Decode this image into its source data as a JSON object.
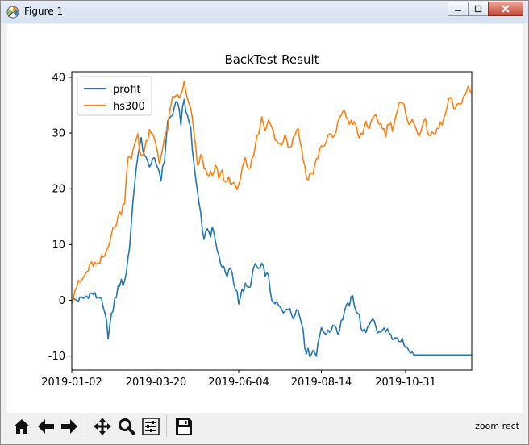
{
  "window": {
    "title": "Figure 1"
  },
  "status": {
    "text": "zoom rect"
  },
  "toolbar": {
    "buttons": [
      "home-icon",
      "back-icon",
      "forward-icon",
      "pan-icon",
      "zoom-icon",
      "subplots-icon",
      "save-icon"
    ]
  },
  "chart_data": {
    "type": "line",
    "title": "BackTest Result",
    "xlabel": "",
    "ylabel": "",
    "x_ticks": [
      "2019-01-02",
      "2019-03-20",
      "2019-06-04",
      "2019-08-14",
      "2019-10-31"
    ],
    "x_tick_index": [
      0,
      51,
      101,
      151,
      202
    ],
    "n_points": 243,
    "ylim": [
      -12.5,
      41
    ],
    "y_ticks": [
      -10,
      0,
      10,
      20,
      30,
      40
    ],
    "legend": {
      "position": "upper-left",
      "entries": [
        "profit",
        "hs300"
      ]
    },
    "grid": false,
    "series": [
      {
        "name": "profit",
        "color": "#1f77b4",
        "keypoints": [
          [
            0,
            0
          ],
          [
            6,
            0.2
          ],
          [
            8,
            0.5
          ],
          [
            10,
            1
          ],
          [
            13,
            1.2
          ],
          [
            15,
            0.6
          ],
          [
            17,
            0.8
          ],
          [
            19,
            -1.5
          ],
          [
            21,
            -4
          ],
          [
            22,
            -6.3
          ],
          [
            24,
            -3
          ],
          [
            26,
            0
          ],
          [
            28,
            2
          ],
          [
            30,
            4
          ],
          [
            31,
            2.5
          ],
          [
            33,
            5
          ],
          [
            35,
            10
          ],
          [
            37,
            17
          ],
          [
            38,
            21
          ],
          [
            39,
            24
          ],
          [
            41,
            27
          ],
          [
            42,
            29
          ],
          [
            44,
            26
          ],
          [
            46,
            24.5
          ],
          [
            48,
            24.5
          ],
          [
            50,
            25
          ],
          [
            52,
            24
          ],
          [
            54,
            22
          ],
          [
            56,
            25
          ],
          [
            58,
            32
          ],
          [
            60,
            33
          ],
          [
            62,
            34
          ],
          [
            64,
            36
          ],
          [
            66,
            32
          ],
          [
            68,
            36
          ],
          [
            69,
            34
          ],
          [
            72,
            31
          ],
          [
            74,
            24
          ],
          [
            76,
            20
          ],
          [
            77,
            17
          ],
          [
            79,
            13
          ],
          [
            80,
            11.5
          ],
          [
            82,
            13
          ],
          [
            84,
            11
          ],
          [
            85,
            13
          ],
          [
            87,
            11
          ],
          [
            88,
            9
          ],
          [
            90,
            7
          ],
          [
            92,
            5.5
          ],
          [
            94,
            4
          ],
          [
            96,
            6
          ],
          [
            98,
            3
          ],
          [
            100,
            1.5
          ],
          [
            101,
            0
          ],
          [
            103,
            1.5
          ],
          [
            105,
            2.5
          ],
          [
            107,
            2
          ],
          [
            109,
            4
          ],
          [
            111,
            6.5
          ],
          [
            113,
            5.5
          ],
          [
            115,
            6
          ],
          [
            117,
            5
          ],
          [
            119,
            4
          ],
          [
            120,
            2
          ],
          [
            122,
            -1
          ],
          [
            124,
            -0.5
          ],
          [
            126,
            -1.5
          ],
          [
            128,
            -2
          ],
          [
            130,
            -1
          ],
          [
            132,
            -2
          ],
          [
            134,
            -3
          ],
          [
            136,
            -1
          ],
          [
            138,
            -3
          ],
          [
            140,
            -5
          ],
          [
            141,
            -8
          ],
          [
            142,
            -9
          ],
          [
            144,
            -9.5
          ],
          [
            146,
            -9
          ],
          [
            148,
            -9.8
          ],
          [
            149,
            -7
          ],
          [
            151,
            -5.5
          ],
          [
            153,
            -5.5
          ],
          [
            155,
            -6
          ],
          [
            157,
            -5
          ],
          [
            159,
            -4
          ],
          [
            161,
            -6
          ],
          [
            163,
            -4
          ],
          [
            165,
            -2
          ],
          [
            166,
            -1.5
          ],
          [
            168,
            -0.5
          ],
          [
            170,
            0.5
          ],
          [
            172,
            -1.5
          ],
          [
            174,
            -3
          ],
          [
            176,
            -6
          ],
          [
            178,
            -5.5
          ],
          [
            180,
            -4
          ],
          [
            182,
            -3
          ],
          [
            184,
            -5
          ],
          [
            186,
            -6
          ],
          [
            188,
            -5.5
          ],
          [
            190,
            -5
          ],
          [
            192,
            -6
          ],
          [
            194,
            -7.5
          ],
          [
            196,
            -7
          ],
          [
            198,
            -7.5
          ],
          [
            200,
            -7
          ],
          [
            202,
            -9
          ],
          [
            204,
            -8.5
          ],
          [
            206,
            -9.8
          ],
          [
            243,
            -9.8
          ]
        ]
      },
      {
        "name": "hs300",
        "color": "#ff7f0e",
        "keypoints": [
          [
            0,
            0
          ],
          [
            2,
            2
          ],
          [
            4,
            3
          ],
          [
            6,
            3.5
          ],
          [
            8,
            4.5
          ],
          [
            10,
            5.5
          ],
          [
            12,
            6.5
          ],
          [
            14,
            6.5
          ],
          [
            16,
            6
          ],
          [
            18,
            7.5
          ],
          [
            20,
            8
          ],
          [
            22,
            10
          ],
          [
            24,
            12
          ],
          [
            26,
            13
          ],
          [
            28,
            15
          ],
          [
            30,
            16
          ],
          [
            32,
            18
          ],
          [
            33,
            22
          ],
          [
            34,
            26
          ],
          [
            36,
            25
          ],
          [
            38,
            28
          ],
          [
            40,
            30
          ],
          [
            41,
            27
          ],
          [
            43,
            26
          ],
          [
            45,
            28
          ],
          [
            47,
            30
          ],
          [
            49,
            29.5
          ],
          [
            51,
            28
          ],
          [
            53,
            25
          ],
          [
            55,
            27
          ],
          [
            57,
            30
          ],
          [
            58,
            31
          ],
          [
            59,
            33
          ],
          [
            61,
            36
          ],
          [
            63,
            37
          ],
          [
            65,
            36
          ],
          [
            67,
            38
          ],
          [
            68,
            39
          ],
          [
            69,
            37
          ],
          [
            71,
            35
          ],
          [
            72,
            34
          ],
          [
            74,
            30
          ],
          [
            76,
            24
          ],
          [
            77,
            25
          ],
          [
            78,
            26
          ],
          [
            80,
            24
          ],
          [
            81,
            23
          ],
          [
            83,
            23
          ],
          [
            85,
            22
          ],
          [
            87,
            24
          ],
          [
            89,
            22
          ],
          [
            91,
            23
          ],
          [
            93,
            21
          ],
          [
            95,
            22
          ],
          [
            97,
            21
          ],
          [
            99,
            20
          ],
          [
            101,
            21
          ],
          [
            103,
            23
          ],
          [
            105,
            25
          ],
          [
            107,
            23
          ],
          [
            109,
            25
          ],
          [
            111,
            28
          ],
          [
            113,
            30
          ],
          [
            115,
            33
          ],
          [
            117,
            31
          ],
          [
            119,
            32
          ],
          [
            121,
            31
          ],
          [
            123,
            29
          ],
          [
            125,
            28
          ],
          [
            127,
            28
          ],
          [
            129,
            30
          ],
          [
            131,
            28
          ],
          [
            133,
            28
          ],
          [
            135,
            30
          ],
          [
            137,
            31
          ],
          [
            139,
            27
          ],
          [
            141,
            24
          ],
          [
            142,
            22
          ],
          [
            144,
            22.5
          ],
          [
            146,
            23
          ],
          [
            148,
            25
          ],
          [
            150,
            27
          ],
          [
            152,
            28
          ],
          [
            154,
            28
          ],
          [
            156,
            30
          ],
          [
            158,
            29
          ],
          [
            160,
            30
          ],
          [
            162,
            33
          ],
          [
            164,
            34
          ],
          [
            166,
            33
          ],
          [
            168,
            32
          ],
          [
            170,
            32
          ],
          [
            172,
            31
          ],
          [
            174,
            29
          ],
          [
            176,
            30
          ],
          [
            178,
            32
          ],
          [
            180,
            31
          ],
          [
            182,
            32
          ],
          [
            184,
            33
          ],
          [
            186,
            32
          ],
          [
            188,
            31
          ],
          [
            190,
            30
          ],
          [
            192,
            32
          ],
          [
            194,
            31
          ],
          [
            196,
            33
          ],
          [
            198,
            35
          ],
          [
            200,
            35
          ],
          [
            202,
            34
          ],
          [
            204,
            32
          ],
          [
            206,
            32
          ],
          [
            208,
            31
          ],
          [
            210,
            30
          ],
          [
            212,
            31
          ],
          [
            214,
            32
          ],
          [
            216,
            30
          ],
          [
            218,
            29.5
          ],
          [
            220,
            30
          ],
          [
            222,
            31
          ],
          [
            224,
            32
          ],
          [
            226,
            33
          ],
          [
            228,
            36
          ],
          [
            230,
            35.5
          ],
          [
            232,
            34
          ],
          [
            234,
            35
          ],
          [
            236,
            36
          ],
          [
            238,
            37
          ],
          [
            240,
            38
          ],
          [
            242,
            37
          ]
        ]
      }
    ]
  }
}
